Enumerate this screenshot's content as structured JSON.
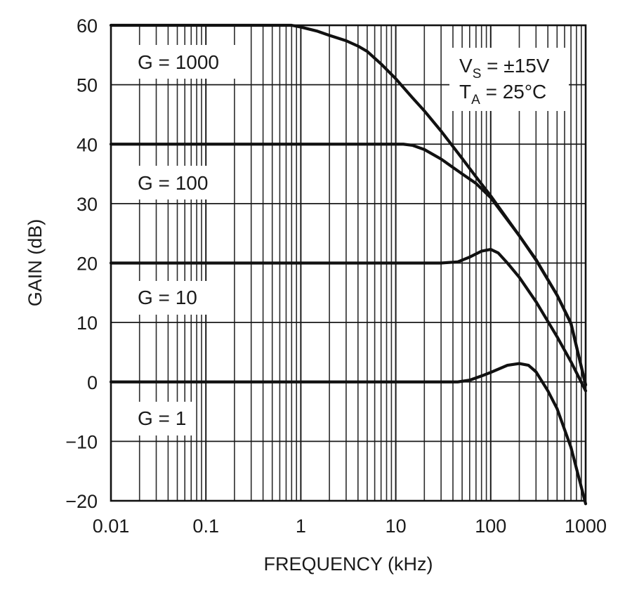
{
  "chart_data": {
    "type": "line",
    "title": "",
    "xlabel": "FREQUENCY (kHz)",
    "ylabel": "GAIN (dB)",
    "x_scale": "log",
    "xlim": [
      0.01,
      1000
    ],
    "ylim": [
      -20,
      60
    ],
    "grid": true,
    "x_tick_labels": [
      "0.01",
      "0.1",
      "1",
      "10",
      "100",
      "1000"
    ],
    "x_tick_values": [
      0.01,
      0.1,
      1,
      10,
      100,
      1000
    ],
    "y_tick_labels": [
      "60",
      "50",
      "40",
      "30",
      "20",
      "10",
      "0",
      "−10",
      "−20"
    ],
    "y_tick_values": [
      60,
      50,
      40,
      30,
      20,
      10,
      0,
      -10,
      -20
    ],
    "conditions": {
      "vs_main": "V",
      "vs_sub": "S",
      "vs_value": " = ±15V",
      "ta_main": "T",
      "ta_sub": "A",
      "ta_value": " = 25°C"
    },
    "series": [
      {
        "name": "G = 1000",
        "x": [
          0.01,
          0.1,
          0.5,
          0.8,
          1.0,
          1.5,
          2,
          3,
          4,
          5,
          7,
          10,
          15,
          20,
          30,
          50,
          70,
          100,
          200,
          300,
          500,
          700,
          1000
        ],
        "y": [
          60,
          60,
          60,
          60,
          59.7,
          59,
          58.3,
          57.4,
          56.5,
          55.6,
          53.5,
          51,
          47.8,
          45.6,
          42.2,
          37.6,
          34.5,
          31.3,
          24.6,
          20.6,
          14.6,
          9.8,
          -0.5
        ]
      },
      {
        "name": "G = 100",
        "x": [
          0.01,
          0.1,
          1,
          5,
          10,
          12,
          15,
          20,
          30,
          50,
          70,
          100,
          200,
          300,
          500,
          700,
          1000
        ],
        "y": [
          40,
          40,
          40,
          40,
          40,
          40,
          39.8,
          39.1,
          37.5,
          35,
          33.4,
          31,
          24.6,
          20.5,
          14.6,
          9.9,
          -0.5
        ]
      },
      {
        "name": "G = 10",
        "x": [
          0.01,
          0.1,
          1,
          10,
          30,
          45,
          60,
          80,
          100,
          120,
          150,
          200,
          300,
          500,
          700,
          1000
        ],
        "y": [
          20,
          20,
          20,
          20,
          20,
          20.2,
          21,
          22,
          22.3,
          21.7,
          20,
          17.6,
          13.5,
          7.6,
          3.4,
          -1.5
        ]
      },
      {
        "name": "G = 1",
        "x": [
          0.01,
          0.1,
          1,
          10,
          45,
          60,
          80,
          100,
          150,
          200,
          250,
          300,
          400,
          500,
          700,
          1000
        ],
        "y": [
          0,
          0,
          0,
          0,
          0,
          0.3,
          1,
          1.6,
          2.8,
          3.1,
          2.8,
          1.7,
          -1.5,
          -4.5,
          -11,
          -20.5
        ]
      }
    ]
  }
}
